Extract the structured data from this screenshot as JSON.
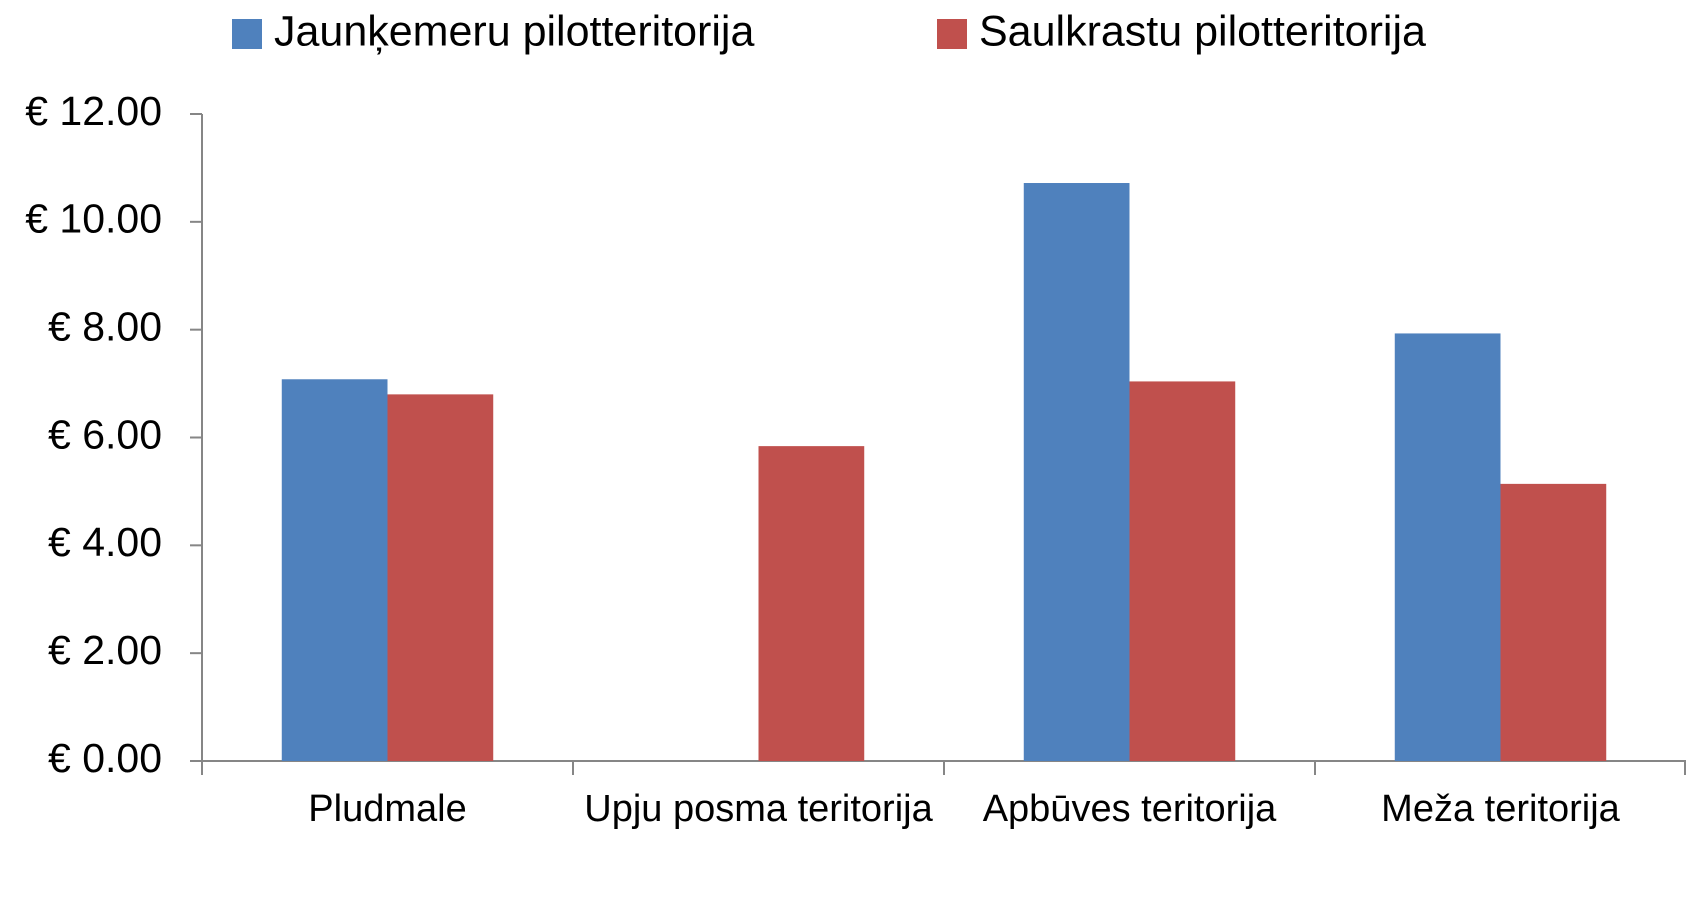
{
  "chart_data": {
    "type": "bar",
    "categories": [
      "Pludmale",
      "Upju posma teritorija",
      "Apbūves teritorija",
      "Meža teritorija"
    ],
    "series": [
      {
        "name": "Jaunķemeru pilotteritorija",
        "color": "#4f81bd",
        "values": [
          7.08,
          null,
          10.72,
          7.93
        ]
      },
      {
        "name": "Saulkrastu pilotteritorija",
        "color": "#c0504d",
        "values": [
          6.8,
          5.84,
          7.04,
          5.14
        ]
      }
    ],
    "ylim": [
      0,
      12
    ],
    "yticks": [
      {
        "value": 0,
        "label": "€ 0.00"
      },
      {
        "value": 2,
        "label": "€ 2.00"
      },
      {
        "value": 4,
        "label": "€ 4.00"
      },
      {
        "value": 6,
        "label": "€ 6.00"
      },
      {
        "value": 8,
        "label": "€ 8.00"
      },
      {
        "value": 10,
        "label": "€ 10.00"
      },
      {
        "value": 12,
        "label": "€ 12.00"
      }
    ],
    "grid": false,
    "legend": "top"
  }
}
